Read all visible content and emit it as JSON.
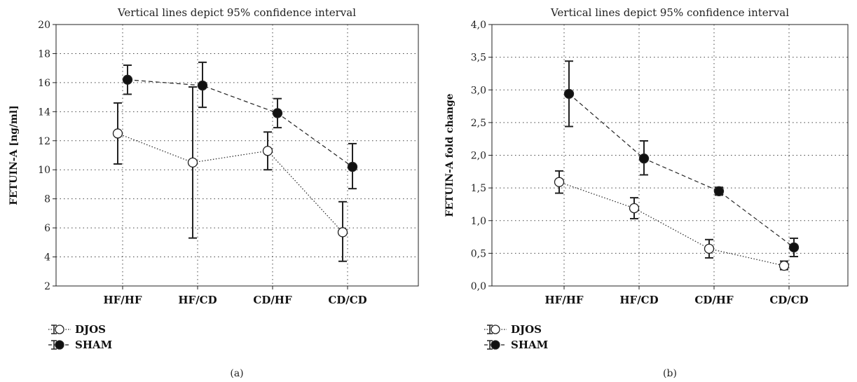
{
  "chart_data": [
    {
      "panel_label": "(a)",
      "type": "line",
      "title": "Vertical lines depict 95% confidence interval",
      "ylabel": "FETUIN-A [ng/ml]",
      "xlabel": "",
      "ylim": [
        2,
        20
      ],
      "yticks": [
        "2",
        "4",
        "6",
        "8",
        "10",
        "12",
        "14",
        "16",
        "18",
        "20"
      ],
      "categories": [
        "HF/HF",
        "HF/CD",
        "CD/HF",
        "CD/CD"
      ],
      "grid": true,
      "legend_position": "bottom-left",
      "series": [
        {
          "name": "DJOS",
          "marker": "open-circle",
          "line": "dotted",
          "values": [
            12.5,
            10.5,
            11.3,
            5.7
          ],
          "ci_low": [
            10.4,
            5.3,
            10.0,
            3.7
          ],
          "ci_high": [
            14.6,
            15.7,
            12.6,
            7.8
          ]
        },
        {
          "name": "SHAM",
          "marker": "filled-circle",
          "line": "dashed",
          "values": [
            16.2,
            15.8,
            13.9,
            10.2
          ],
          "ci_low": [
            15.2,
            14.3,
            12.9,
            8.7
          ],
          "ci_high": [
            17.2,
            17.4,
            14.9,
            11.8
          ]
        }
      ]
    },
    {
      "panel_label": "(b)",
      "type": "line",
      "title": "Vertical lines depict 95% confidence interval",
      "ylabel": "FETUIN-A fold change",
      "xlabel": "",
      "ylim": [
        0,
        4
      ],
      "yticks": [
        "0,0",
        "0,5",
        "1,0",
        "1,5",
        "2,0",
        "2,5",
        "3,0",
        "3,5",
        "4,0"
      ],
      "categories": [
        "HF/HF",
        "HF/CD",
        "CD/HF",
        "CD/CD"
      ],
      "grid": true,
      "legend_position": "bottom-left",
      "series": [
        {
          "name": "DJOS",
          "marker": "open-circle",
          "line": "dotted",
          "values": [
            1.59,
            1.19,
            0.57,
            0.31
          ],
          "ci_low": [
            1.42,
            1.03,
            0.43,
            0.25
          ],
          "ci_high": [
            1.76,
            1.35,
            0.71,
            0.38
          ]
        },
        {
          "name": "SHAM",
          "marker": "filled-circle",
          "line": "dashed",
          "values": [
            2.94,
            1.95,
            1.45,
            0.59
          ],
          "ci_low": [
            2.44,
            1.7,
            1.39,
            0.45
          ],
          "ci_high": [
            3.44,
            2.22,
            1.51,
            0.73
          ]
        }
      ]
    }
  ]
}
